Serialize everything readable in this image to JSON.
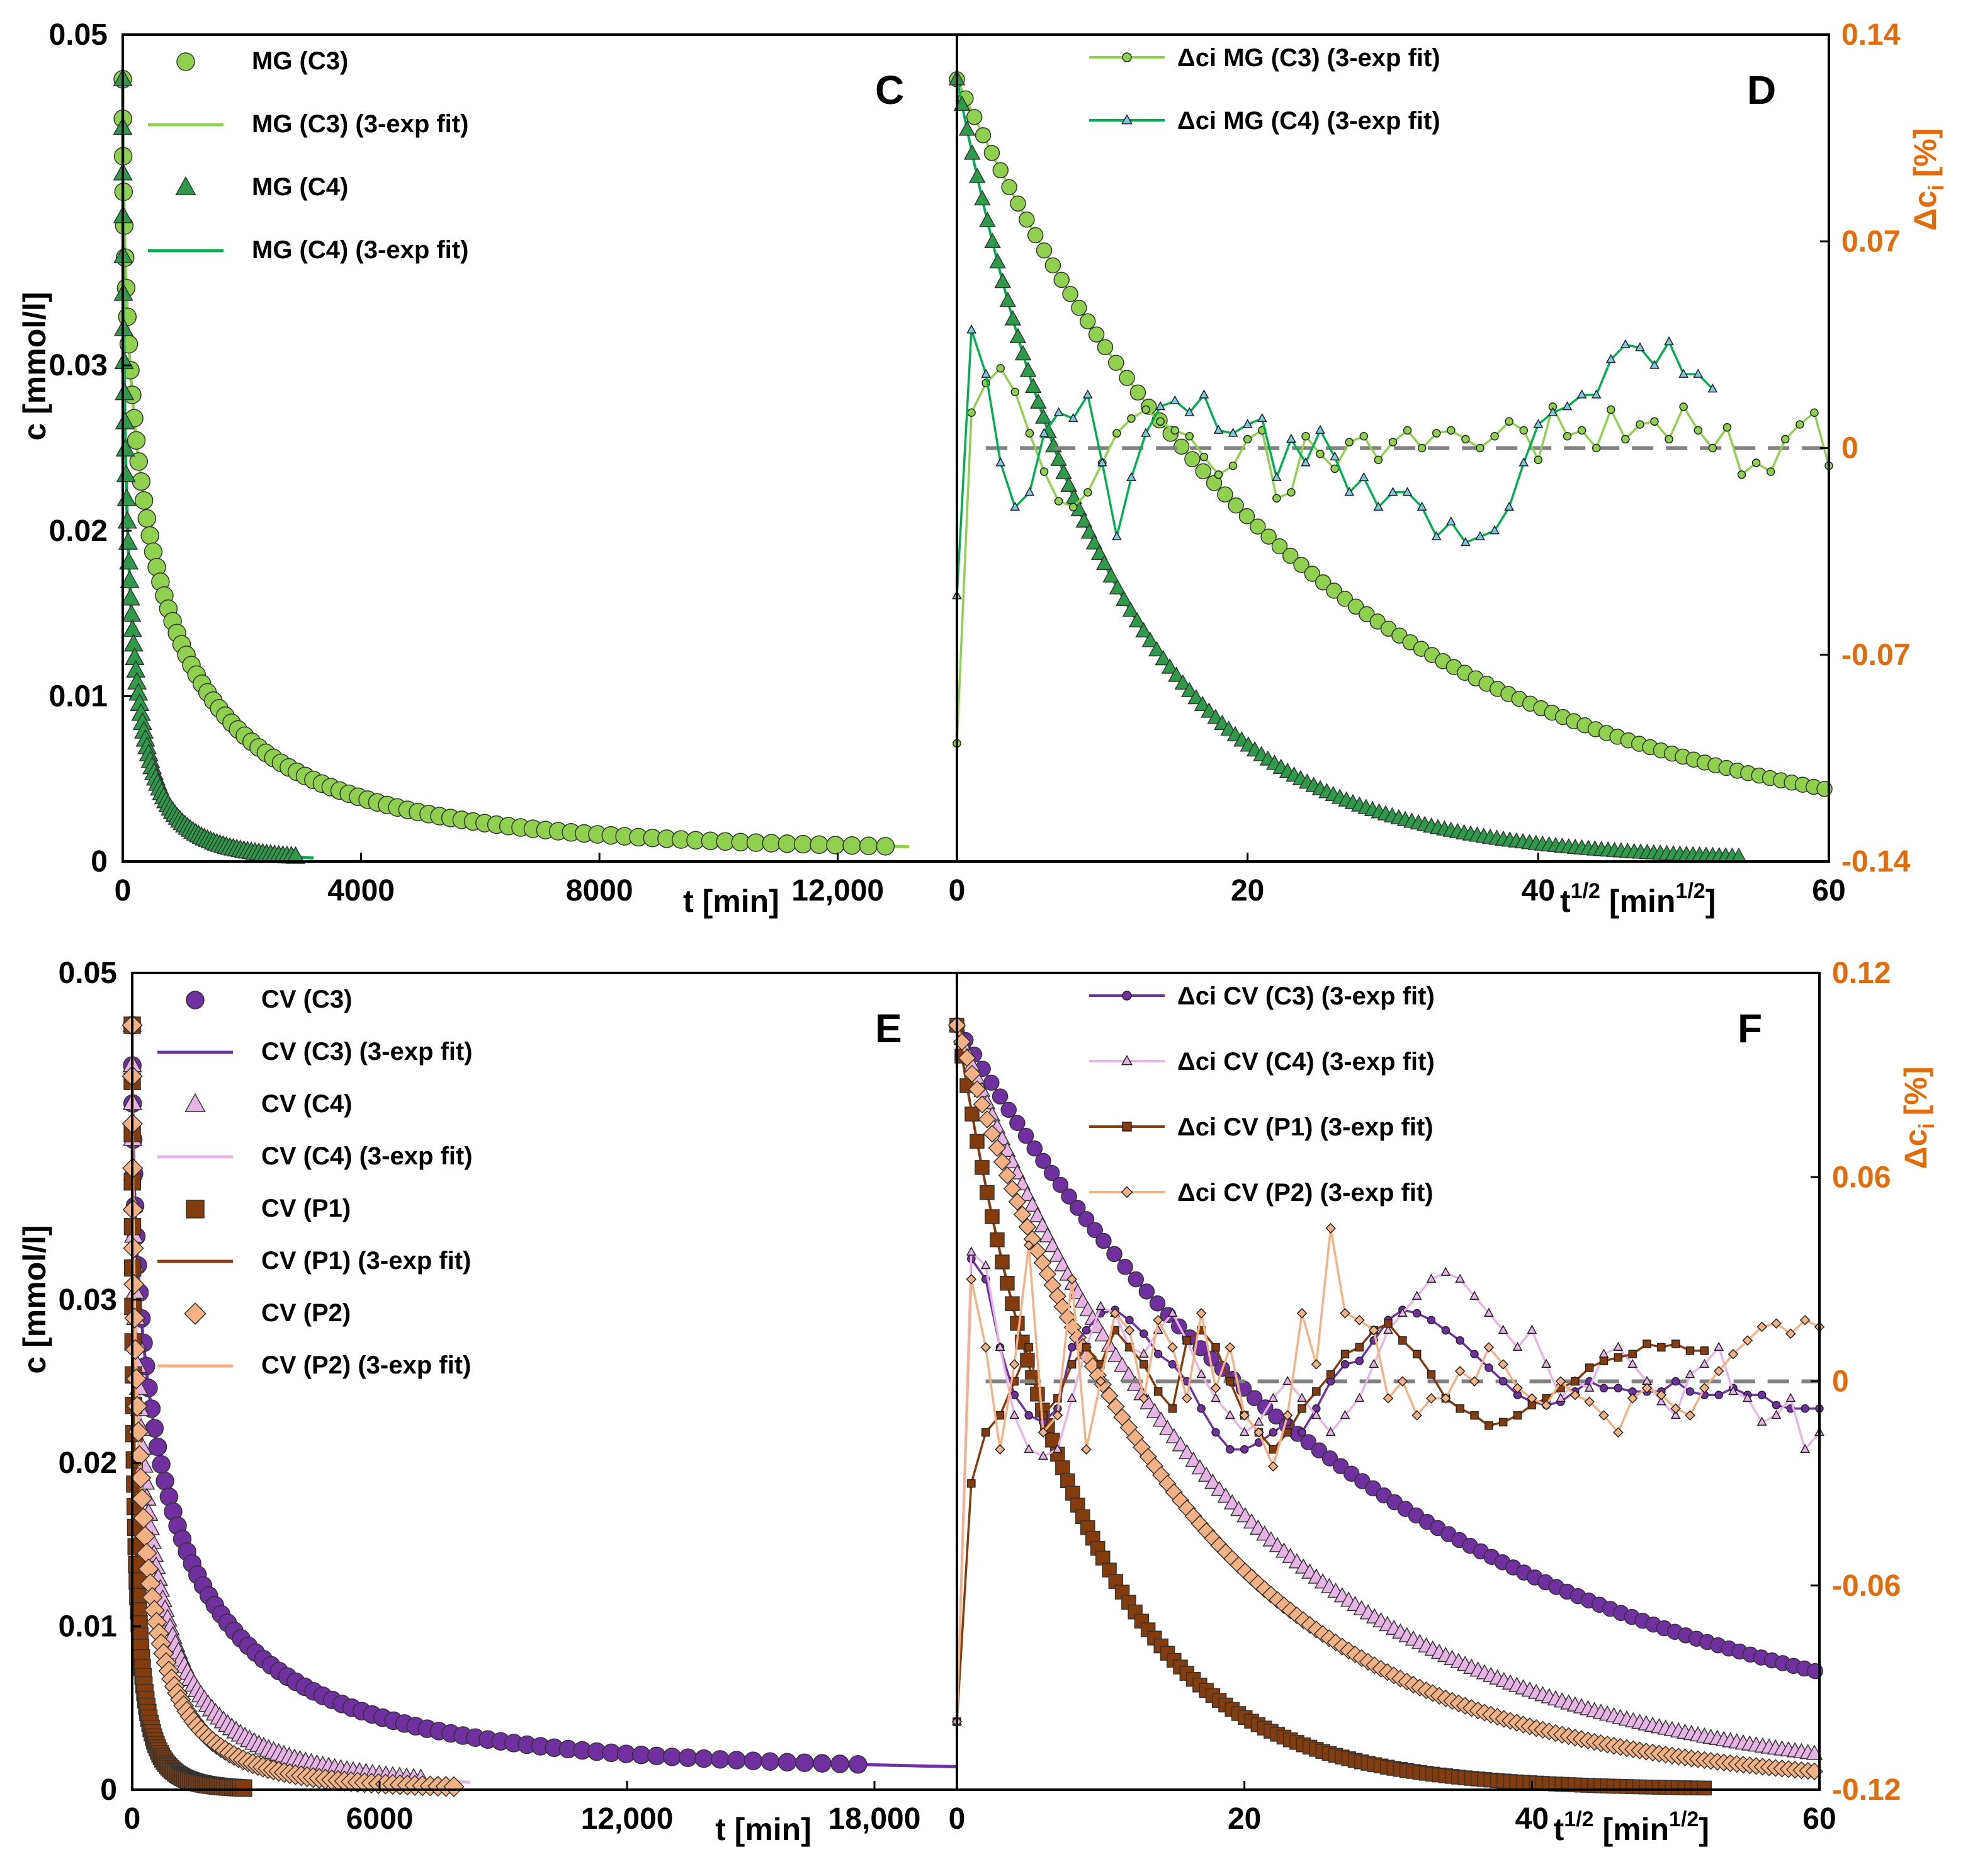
{
  "colors": {
    "mg_c3": "#8fd14f",
    "mg_c4": "#00b050",
    "mg_c4_marker": "#2e9b4a",
    "cv_c3": "#7030a0",
    "cv_c4": "#e8b4e6",
    "cv_p1": "#843c0c",
    "cv_p2": "#f4b183",
    "right_axis": "#e36c0a",
    "zero_line": "#808080"
  },
  "chart_data": [
    {
      "id": "C",
      "type": "scatter",
      "panel_label": "C",
      "xlabel": "t [min]",
      "ylabel": "c [mmol/l]",
      "xlim": [
        0,
        14000
      ],
      "ylim": [
        0,
        0.05
      ],
      "x_ticks": [
        0,
        4000,
        8000,
        12000
      ],
      "x_tick_labels": [
        "0",
        "4000",
        "8000",
        "12,000"
      ],
      "y_ticks": [
        0,
        0.01,
        0.02,
        0.03,
        0.05
      ],
      "y_tick_labels": [
        "0",
        "0.01",
        "0.02",
        "0.03",
        "0.05"
      ],
      "legend": [
        "MG (C3)",
        "MG (C3) (3-exp fit)",
        "MG (C4)",
        "MG (C4) (3-exp fit)"
      ],
      "series": [
        {
          "name": "MG (C3)",
          "c0": 0.0473,
          "tau_sqrt": 24,
          "tail": 0.0005,
          "tmax": 12800,
          "fit_tmax": 13200
        },
        {
          "name": "MG (C4)",
          "c0": 0.0473,
          "tau_sqrt": 10.5,
          "tail": 0.0,
          "tmax": 2900,
          "fit_tmax": 3200
        }
      ]
    },
    {
      "id": "D",
      "type": "scatter",
      "panel_label": "D",
      "xlabel": "t",
      "xlabel_sup": "1/2",
      "xlabel_unit": "[min",
      "xlabel_unit_sup": "1/2",
      "xlabel_close": "]",
      "ylabel_right": "Δc",
      "ylabel_right_sub": "i",
      "ylabel_right_unit": "[%]",
      "xlim": [
        0,
        60
      ],
      "ylim_right": [
        -0.14,
        0.14
      ],
      "x_ticks": [
        0,
        20,
        40,
        60
      ],
      "x_tick_labels": [
        "0",
        "20",
        "40",
        "60"
      ],
      "y_right_ticks": [
        -0.14,
        -0.07,
        0,
        0.07,
        0.14
      ],
      "y_right_tick_labels": [
        "-0.14",
        "-0.07",
        "0",
        "0.07",
        "0.14"
      ],
      "legend": [
        "Δci MG (C3) (3-exp fit)",
        "Δci MG (C4) (3-exp fit)"
      ],
      "residuals": [
        {
          "name": "Δci MG (C3) (3-exp fit)",
          "x": [
            0,
            1,
            2,
            3,
            4,
            5,
            6,
            7,
            8,
            9,
            10,
            11,
            12,
            13,
            14,
            15,
            16,
            17,
            18,
            19,
            20,
            21,
            22,
            23,
            24,
            25,
            26,
            27,
            28,
            29,
            30,
            31,
            32,
            33,
            34,
            35,
            36,
            37,
            38,
            39,
            40,
            41,
            42,
            43,
            44,
            45,
            46,
            47,
            48,
            49,
            50,
            51,
            52,
            53,
            54,
            55,
            56,
            57,
            58,
            59,
            60
          ],
          "values": [
            -0.1,
            0.012,
            0.022,
            0.027,
            0.019,
            0.005,
            -0.008,
            -0.018,
            -0.02,
            -0.015,
            -0.005,
            0.005,
            0.01,
            0.013,
            0.009,
            0.006,
            0.004,
            -0.003,
            -0.009,
            -0.006,
            0.003,
            0.006,
            -0.017,
            -0.015,
            0.004,
            -0.002,
            -0.007,
            0.002,
            0.004,
            -0.004,
            0.002,
            0.006,
            0.0,
            0.005,
            0.006,
            0.003,
            0.0,
            0.004,
            0.009,
            0.006,
            -0.004,
            0.014,
            0.004,
            0.006,
            0.0,
            0.013,
            0.003,
            0.008,
            0.009,
            0.003,
            0.014,
            0.006,
            0.0,
            0.007,
            -0.009,
            -0.005,
            -0.008,
            0.003,
            0.008,
            0.012,
            -0.006
          ]
        },
        {
          "name": "Δci MG (C4) (3-exp fit)",
          "x": [
            0,
            1,
            2,
            3,
            4,
            5,
            6,
            7,
            8,
            9,
            10,
            11,
            12,
            13,
            14,
            15,
            16,
            17,
            18,
            19,
            20,
            21,
            22,
            23,
            24,
            25,
            26,
            27,
            28,
            29,
            30,
            31,
            32,
            33,
            34,
            35,
            36,
            37,
            38,
            39,
            40,
            41,
            42,
            43,
            44,
            45,
            46,
            47,
            48,
            49,
            50,
            51,
            52
          ],
          "values": [
            -0.05,
            0.04,
            0.025,
            -0.005,
            -0.02,
            -0.015,
            0.005,
            0.012,
            0.01,
            0.018,
            -0.005,
            -0.03,
            -0.01,
            0.005,
            0.014,
            0.016,
            0.012,
            0.018,
            0.006,
            0.005,
            0.008,
            0.01,
            -0.01,
            0.003,
            -0.005,
            0.006,
            -0.003,
            -0.015,
            -0.01,
            -0.02,
            -0.015,
            -0.015,
            -0.02,
            -0.03,
            -0.025,
            -0.032,
            -0.03,
            -0.028,
            -0.02,
            -0.005,
            0.008,
            0.012,
            0.014,
            0.018,
            0.018,
            0.03,
            0.035,
            0.034,
            0.028,
            0.036,
            0.025,
            0.025,
            0.02
          ]
        }
      ],
      "left_curves": [
        {
          "name": "MG (C3)",
          "tau_sqrt": 24,
          "xmax": 60
        },
        {
          "name": "MG (C4)",
          "tau_sqrt": 10.5,
          "xmax": 54
        }
      ]
    },
    {
      "id": "E",
      "type": "scatter",
      "panel_label": "E",
      "xlabel": "t [min]",
      "ylabel": "c [mmol/l]",
      "xlim": [
        0,
        20000
      ],
      "ylim": [
        0,
        0.05
      ],
      "x_ticks": [
        0,
        6000,
        12000,
        18000
      ],
      "x_tick_labels": [
        "0",
        "6000",
        "12,000",
        "18,000"
      ],
      "y_ticks": [
        0,
        0.01,
        0.02,
        0.03,
        0.05
      ],
      "y_tick_labels": [
        "0",
        "0.01",
        "0.02",
        "0.03",
        "0.05"
      ],
      "legend": [
        "CV (C3)",
        "CV (C3) (3-exp fit)",
        "CV (C4)",
        "CV (C4) (3-exp fit)",
        "CV (P1)",
        "CV (P1) (3-exp fit)",
        "CV (P2)",
        "CV (P2) (3-exp fit)"
      ],
      "series": [
        {
          "name": "CV (C3)",
          "c0": 0.0468,
          "tau_sqrt": 30,
          "tail": 0.001,
          "tmax": 17600,
          "fit_tmax": 20000
        },
        {
          "name": "CV (C4)",
          "c0": 0.0468,
          "tau_sqrt": 19.5,
          "tail": 0.0,
          "tmax": 7000,
          "fit_tmax": 8200
        },
        {
          "name": "CV (P1)",
          "c0": 0.0468,
          "tau_sqrt": 8.5,
          "tail": 0.0,
          "tmax": 2700,
          "fit_tmax": 2800
        },
        {
          "name": "CV (P2)",
          "c0": 0.0468,
          "tau_sqrt": 16,
          "tail": 0.0,
          "tmax": 7800,
          "fit_tmax": 8000
        }
      ]
    },
    {
      "id": "F",
      "type": "scatter",
      "panel_label": "F",
      "xlabel": "t",
      "xlabel_sup": "1/2",
      "xlabel_unit": "[min",
      "xlabel_unit_sup": "1/2",
      "xlabel_close": "]",
      "ylabel_right": "Δc",
      "ylabel_right_sub": "i",
      "ylabel_right_unit": "[%]",
      "xlim": [
        0,
        60
      ],
      "ylim_right": [
        -0.12,
        0.12
      ],
      "x_ticks": [
        0,
        20,
        40,
        60
      ],
      "x_tick_labels": [
        "0",
        "20",
        "40",
        "60"
      ],
      "y_right_ticks": [
        -0.12,
        -0.06,
        0,
        0.06,
        0.12
      ],
      "y_right_tick_labels": [
        "-0.12",
        "-0.06",
        "0",
        "0.06",
        "0.12"
      ],
      "legend": [
        "Δci CV (C3) (3-exp fit)",
        "Δci CV (C4) (3-exp fit)",
        "Δci CV (P1) (3-exp fit)",
        "Δci CV (P2) (3-exp fit)"
      ],
      "residuals": [
        {
          "name": "Δci CV (C3) (3-exp fit)",
          "x": [
            0,
            1,
            2,
            3,
            4,
            5,
            6,
            7,
            8,
            9,
            10,
            11,
            12,
            13,
            14,
            15,
            16,
            17,
            18,
            19,
            20,
            21,
            22,
            23,
            24,
            25,
            26,
            27,
            28,
            29,
            30,
            31,
            32,
            33,
            34,
            35,
            36,
            37,
            38,
            39,
            40,
            41,
            42,
            43,
            44,
            45,
            46,
            47,
            48,
            49,
            50,
            51,
            52,
            53,
            54,
            55,
            56,
            57,
            58,
            59,
            60
          ],
          "values": [
            -0.1,
            0.036,
            0.03,
            0.01,
            -0.004,
            -0.01,
            -0.012,
            -0.008,
            0.01,
            0.015,
            0.02,
            0.021,
            0.018,
            0.014,
            0.008,
            0.005,
            0.0,
            -0.008,
            -0.015,
            -0.02,
            -0.02,
            -0.018,
            -0.015,
            -0.012,
            -0.015,
            -0.008,
            0.0,
            0.005,
            0.006,
            0.012,
            0.018,
            0.021,
            0.02,
            0.018,
            0.015,
            0.012,
            0.008,
            0.004,
            0.0,
            -0.004,
            -0.006,
            -0.007,
            -0.006,
            -0.003,
            0.0,
            -0.002,
            -0.002,
            -0.003,
            -0.003,
            -0.003,
            0.0,
            -0.003,
            -0.004,
            -0.004,
            -0.002,
            -0.004,
            -0.004,
            -0.007,
            -0.008,
            -0.008,
            -0.008
          ]
        },
        {
          "name": "Δci CV (C4) (3-exp fit)",
          "x": [
            0,
            1,
            2,
            3,
            4,
            5,
            6,
            7,
            8,
            9,
            10,
            11,
            12,
            13,
            14,
            15,
            16,
            17,
            18,
            19,
            20,
            21,
            22,
            23,
            24,
            25,
            26,
            27,
            28,
            29,
            30,
            31,
            32,
            33,
            34,
            35,
            36,
            37,
            38,
            39,
            40,
            41,
            42,
            43,
            44,
            45,
            46,
            47,
            48,
            49,
            50,
            51,
            52,
            53,
            54,
            55,
            56,
            57,
            58,
            59,
            60
          ],
          "values": [
            -0.1,
            0.038,
            0.034,
            0.01,
            -0.01,
            -0.02,
            -0.022,
            -0.02,
            -0.005,
            0.01,
            0.022,
            0.02,
            0.01,
            0.008,
            0.015,
            0.02,
            0.012,
            0.002,
            -0.005,
            -0.01,
            -0.015,
            -0.012,
            -0.005,
            0.0,
            -0.005,
            -0.01,
            -0.015,
            -0.01,
            -0.005,
            0.005,
            0.015,
            0.02,
            0.025,
            0.03,
            0.032,
            0.03,
            0.025,
            0.02,
            0.015,
            0.01,
            0.015,
            0.005,
            -0.005,
            0.0,
            -0.002,
            0.008,
            0.01,
            0.005,
            0.0,
            -0.006,
            -0.01,
            0.002,
            0.005,
            0.01,
            -0.003,
            -0.005,
            -0.012,
            -0.01,
            -0.005,
            -0.02,
            -0.015
          ]
        },
        {
          "name": "Δci CV (P1) (3-exp fit)",
          "x": [
            0,
            1,
            2,
            3,
            4,
            5,
            6,
            7,
            8,
            9,
            10,
            11,
            12,
            13,
            14,
            15,
            16,
            17,
            18,
            19,
            20,
            21,
            22,
            23,
            24,
            25,
            26,
            27,
            28,
            29,
            30,
            31,
            32,
            33,
            34,
            35,
            36,
            37,
            38,
            39,
            40,
            41,
            42,
            43,
            44,
            45,
            46,
            47,
            48,
            49,
            50,
            51,
            52
          ],
          "values": [
            -0.1,
            -0.03,
            -0.015,
            -0.01,
            0.0,
            0.01,
            -0.01,
            -0.005,
            0.005,
            0.01,
            0.005,
            0.015,
            0.01,
            0.005,
            -0.003,
            -0.008,
            0.012,
            0.015,
            0.01,
            0.0,
            -0.01,
            -0.015,
            -0.02,
            -0.015,
            -0.008,
            -0.003,
            0.002,
            0.008,
            0.01,
            0.015,
            0.017,
            0.012,
            0.008,
            0.002,
            -0.005,
            -0.008,
            -0.01,
            -0.013,
            -0.012,
            -0.01,
            -0.007,
            -0.005,
            -0.002,
            0.0,
            0.004,
            0.006,
            0.007,
            0.008,
            0.011,
            0.01,
            0.011,
            0.009,
            0.009
          ]
        },
        {
          "name": "Δci CV (P2) (3-exp fit)",
          "x": [
            0,
            1,
            2,
            3,
            4,
            5,
            6,
            7,
            8,
            9,
            10,
            11,
            12,
            13,
            14,
            15,
            16,
            17,
            18,
            19,
            20,
            21,
            22,
            23,
            24,
            25,
            26,
            27,
            28,
            29,
            30,
            31,
            32,
            33,
            34,
            35,
            36,
            37,
            38,
            39,
            40,
            41,
            42,
            43,
            44,
            45,
            46,
            47,
            48,
            49,
            50,
            51,
            52,
            53,
            54,
            55,
            56,
            57,
            58,
            59,
            60
          ],
          "values": [
            -0.1,
            0.03,
            0.01,
            -0.02,
            0.005,
            0.04,
            -0.015,
            -0.01,
            0.03,
            -0.02,
            0.0,
            0.02,
            0.015,
            -0.005,
            0.018,
            0.01,
            -0.005,
            0.02,
            -0.002,
            0.01,
            -0.01,
            -0.015,
            -0.025,
            -0.01,
            0.02,
            0.005,
            0.045,
            0.02,
            0.018,
            0.015,
            -0.005,
            0.0,
            -0.01,
            -0.005,
            -0.005,
            0.003,
            0.0,
            0.01,
            0.005,
            -0.002,
            -0.005,
            -0.007,
            0.0,
            -0.004,
            -0.006,
            -0.01,
            -0.015,
            -0.005,
            -0.002,
            -0.004,
            -0.008,
            -0.01,
            -0.002,
            0.003,
            0.008,
            0.012,
            0.016,
            0.017,
            0.014,
            0.018,
            0.016
          ]
        }
      ],
      "left_curves": [
        {
          "name": "CV (C3)",
          "tau_sqrt": 30,
          "xmax": 60
        },
        {
          "name": "CV (C4)",
          "tau_sqrt": 19.5,
          "xmax": 60
        },
        {
          "name": "CV (P1)",
          "tau_sqrt": 8.5,
          "xmax": 52
        },
        {
          "name": "CV (P2)",
          "tau_sqrt": 16,
          "xmax": 60
        }
      ]
    }
  ]
}
